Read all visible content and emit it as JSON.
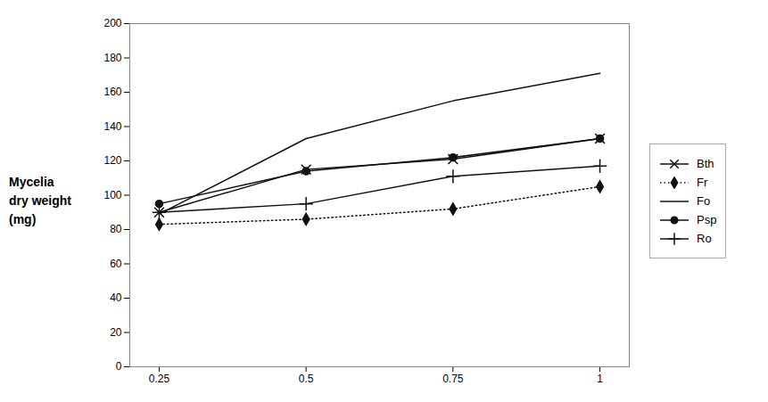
{
  "chart_data": {
    "type": "line",
    "ylabel": [
      "Mycelia",
      "dry weight",
      "(mg)"
    ],
    "x": [
      0.25,
      0.5,
      0.75,
      1.0
    ],
    "series": [
      {
        "name": "Bth",
        "color": "#111111",
        "marker": "times",
        "line_style": "solid",
        "values": [
          90,
          115,
          121,
          133
        ]
      },
      {
        "name": "Fr",
        "color": "#111111",
        "marker": "diamond",
        "line_style": "dotted",
        "values": [
          83,
          86,
          92,
          105
        ]
      },
      {
        "name": "Fo",
        "color": "#111111",
        "marker": "none",
        "line_style": "solid",
        "values": [
          89,
          133,
          155,
          171
        ]
      },
      {
        "name": "Psp",
        "color": "#111111",
        "marker": "circle",
        "line_style": "solid",
        "values": [
          95,
          114,
          122,
          133
        ]
      },
      {
        "name": "Ro",
        "color": "#111111",
        "marker": "plus",
        "line_style": "solid",
        "values": [
          90,
          95,
          111,
          117
        ]
      }
    ],
    "xlim": [
      0.2,
      1.05
    ],
    "xticks": [
      0.25,
      0.5,
      0.75,
      1
    ],
    "ylim": [
      0,
      200
    ],
    "yticks": [
      0,
      20,
      40,
      60,
      80,
      100,
      120,
      140,
      160,
      180,
      200
    ],
    "grid": false,
    "legend": "right"
  }
}
